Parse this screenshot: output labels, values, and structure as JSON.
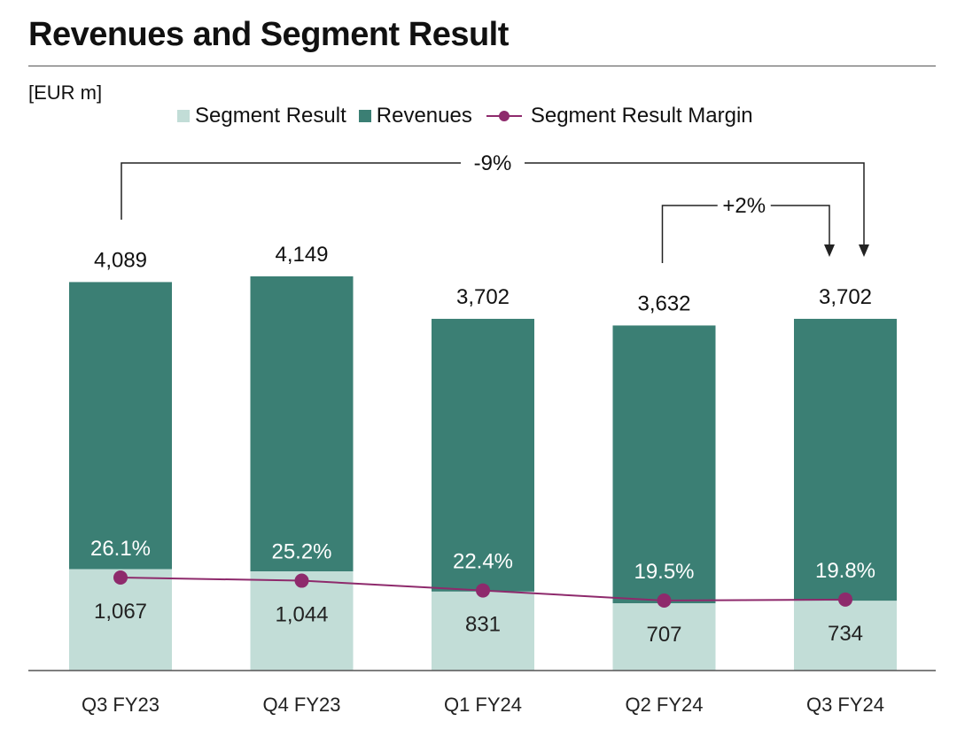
{
  "title": "Revenues and Segment Result",
  "unit": "[EUR m]",
  "colors": {
    "revenues": "#3b7f74",
    "segment_result": "#c2ddd7",
    "margin": "#8e2a6c",
    "axis": "#555555",
    "bracket": "#222222"
  },
  "legend": [
    {
      "key": "segment_result",
      "label": "Segment Result",
      "kind": "square"
    },
    {
      "key": "revenues",
      "label": "Revenues",
      "kind": "square"
    },
    {
      "key": "margin",
      "label": "Segment Result Margin",
      "kind": "line-marker"
    }
  ],
  "chart_data": {
    "type": "bar",
    "stacked": false,
    "categories": [
      "Q3 FY23",
      "Q4 FY23",
      "Q1 FY24",
      "Q2 FY24",
      "Q3 FY24"
    ],
    "series": [
      {
        "name": "Revenues",
        "values": [
          4089,
          4149,
          3702,
          3632,
          3702
        ],
        "labels": [
          "4,089",
          "4,149",
          "3,702",
          "3,632",
          "3,702"
        ]
      },
      {
        "name": "Segment Result",
        "values": [
          1067,
          1044,
          831,
          707,
          734
        ],
        "labels": [
          "1,067",
          "1,044",
          "831",
          "707",
          "734"
        ]
      },
      {
        "name": "Segment Result Margin",
        "type": "line",
        "values": [
          26.1,
          25.2,
          22.4,
          19.5,
          19.8
        ],
        "labels": [
          "26.1%",
          "25.2%",
          "22.4%",
          "19.5%",
          "19.8%"
        ]
      }
    ],
    "ylim": [
      0,
      4149
    ],
    "grid": false,
    "legend_position": "top",
    "annotations": [
      {
        "label": "-9%",
        "from": "Q3 FY23",
        "to": "Q3 FY24"
      },
      {
        "label": "+2%",
        "from": "Q2 FY24",
        "to": "Q3 FY24"
      }
    ]
  }
}
